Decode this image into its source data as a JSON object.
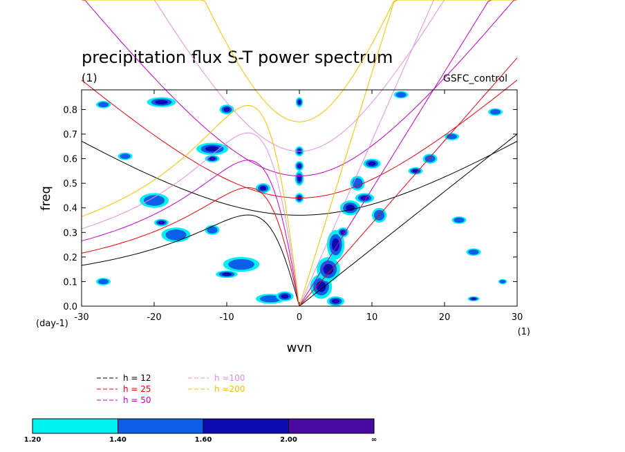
{
  "chart_data": {
    "type": "heatmap",
    "title": "precipitation flux S-T power spectrum",
    "subtitle": "(1)",
    "model_label": "GSFC_control",
    "xlabel": "wvn",
    "ylabel": "freq",
    "x_unit_label": "(1)",
    "y_unit_label": "(day-1)",
    "xlim": [
      -30,
      30
    ],
    "ylim": [
      0,
      0.88
    ],
    "x_ticks": [
      -30,
      -20,
      -10,
      0,
      10,
      20,
      30
    ],
    "x_tick_labels": [
      "-30",
      "-20",
      "-10",
      "0",
      "10",
      "20",
      "30"
    ],
    "y_ticks": [
      0,
      0.1,
      0.2,
      0.3,
      0.4,
      0.5,
      0.6,
      0.7,
      0.8
    ],
    "y_tick_labels": [
      "0.0",
      "0.1",
      "0.2",
      "0.3",
      "0.4",
      "0.5",
      "0.6",
      "0.7",
      "0.8"
    ],
    "colorbar": {
      "levels_labels": [
        "1.20",
        "1.40",
        "1.60",
        "2.00",
        "∞"
      ],
      "colors": [
        "#00f0f0",
        "#0a5fe6",
        "#0b0bb0",
        "#4a0aa0"
      ]
    },
    "dispersion_curves": [
      {
        "label": "h = 12",
        "h": 12,
        "color": "#000000"
      },
      {
        "label": "h = 25",
        "h": 25,
        "color": "#e8000b"
      },
      {
        "label": "h = 50",
        "h": 50,
        "color": "#c000c0"
      },
      {
        "label": "h =100",
        "h": 100,
        "color": "#e090e0"
      },
      {
        "label": "h =200",
        "h": 200,
        "color": "#f0c000"
      }
    ],
    "ridge_tops": [
      {
        "h": 12,
        "freq_at_k0": 0.37
      },
      {
        "h": 25,
        "freq_at_k0": 0.44
      },
      {
        "h": 50,
        "freq_at_k0": 0.53
      },
      {
        "h": 100,
        "freq_at_k0": 0.63
      },
      {
        "h": 200,
        "freq_at_k0": 0.75
      }
    ],
    "kelvin_slopes": [
      {
        "h": 12,
        "freq_at_k30": 0.7
      },
      {
        "h": 25,
        "freq_at_k30": 1.01
      },
      {
        "h": 50,
        "freq_at_k30": 1.43
      },
      {
        "h": 100,
        "freq_at_k30": 2.02
      },
      {
        "h": 200,
        "freq_at_k30": 2.85
      }
    ],
    "blobs": [
      {
        "x": 5,
        "y": 0.02,
        "rx": 1.2,
        "ry": 0.02,
        "level": 3
      },
      {
        "x": 3,
        "y": 0.08,
        "rx": 1.5,
        "ry": 0.05,
        "level": 2
      },
      {
        "x": 4,
        "y": 0.15,
        "rx": 1.6,
        "ry": 0.05,
        "level": 2
      },
      {
        "x": 5,
        "y": 0.25,
        "rx": 1.2,
        "ry": 0.06,
        "level": 2
      },
      {
        "x": 6,
        "y": 0.3,
        "rx": 0.8,
        "ry": 0.02,
        "level": 3
      },
      {
        "x": 7,
        "y": 0.4,
        "rx": 1.4,
        "ry": 0.03,
        "level": 2
      },
      {
        "x": 9,
        "y": 0.44,
        "rx": 1.3,
        "ry": 0.02,
        "level": 3
      },
      {
        "x": 8,
        "y": 0.5,
        "rx": 1.0,
        "ry": 0.03,
        "level": 1
      },
      {
        "x": 10,
        "y": 0.58,
        "rx": 1.2,
        "ry": 0.02,
        "level": 2
      },
      {
        "x": 11,
        "y": 0.37,
        "rx": 1.0,
        "ry": 0.03,
        "level": 1
      },
      {
        "x": 0,
        "y": 0.83,
        "rx": 0.5,
        "ry": 0.02,
        "level": 2
      },
      {
        "x": 0,
        "y": 0.63,
        "rx": 0.6,
        "ry": 0.02,
        "level": 2
      },
      {
        "x": 0,
        "y": 0.52,
        "rx": 0.6,
        "ry": 0.03,
        "level": 2
      },
      {
        "x": 0,
        "y": 0.44,
        "rx": 0.6,
        "ry": 0.02,
        "level": 2
      },
      {
        "x": 0,
        "y": 0.57,
        "rx": 0.6,
        "ry": 0.02,
        "level": 3
      },
      {
        "x": -12,
        "y": 0.64,
        "rx": 2.2,
        "ry": 0.025,
        "level": 2
      },
      {
        "x": -12,
        "y": 0.6,
        "rx": 1.0,
        "ry": 0.015,
        "level": 3
      },
      {
        "x": -19,
        "y": 0.83,
        "rx": 2.0,
        "ry": 0.02,
        "level": 2
      },
      {
        "x": -10,
        "y": 0.8,
        "rx": 1.0,
        "ry": 0.02,
        "level": 2
      },
      {
        "x": -5,
        "y": 0.48,
        "rx": 1.0,
        "ry": 0.02,
        "level": 2
      },
      {
        "x": -20,
        "y": 0.43,
        "rx": 2.0,
        "ry": 0.03,
        "level": 1
      },
      {
        "x": -19,
        "y": 0.34,
        "rx": 1.0,
        "ry": 0.015,
        "level": 3
      },
      {
        "x": -17,
        "y": 0.29,
        "rx": 2.0,
        "ry": 0.03,
        "level": 1
      },
      {
        "x": -12,
        "y": 0.31,
        "rx": 1.0,
        "ry": 0.02,
        "level": 1
      },
      {
        "x": -8,
        "y": 0.17,
        "rx": 2.5,
        "ry": 0.03,
        "level": 1
      },
      {
        "x": -10,
        "y": 0.13,
        "rx": 1.5,
        "ry": 0.015,
        "level": 2
      },
      {
        "x": -4,
        "y": 0.03,
        "rx": 2.0,
        "ry": 0.02,
        "level": 1
      },
      {
        "x": -2,
        "y": 0.04,
        "rx": 1.2,
        "ry": 0.02,
        "level": 2
      },
      {
        "x": 14,
        "y": 0.86,
        "rx": 1.0,
        "ry": 0.015,
        "level": 1
      },
      {
        "x": 16,
        "y": 0.55,
        "rx": 1.0,
        "ry": 0.015,
        "level": 2
      },
      {
        "x": 18,
        "y": 0.6,
        "rx": 1.0,
        "ry": 0.02,
        "level": 1
      },
      {
        "x": 21,
        "y": 0.69,
        "rx": 1.0,
        "ry": 0.015,
        "level": 1
      },
      {
        "x": 24,
        "y": 0.22,
        "rx": 1.0,
        "ry": 0.015,
        "level": 1
      },
      {
        "x": 27,
        "y": 0.79,
        "rx": 1.0,
        "ry": 0.015,
        "level": 1
      },
      {
        "x": 22,
        "y": 0.35,
        "rx": 1.0,
        "ry": 0.015,
        "level": 1
      },
      {
        "x": -27,
        "y": 0.82,
        "rx": 1.0,
        "ry": 0.015,
        "level": 1
      },
      {
        "x": -24,
        "y": 0.61,
        "rx": 1.0,
        "ry": 0.015,
        "level": 1
      },
      {
        "x": -27,
        "y": 0.1,
        "rx": 1.0,
        "ry": 0.015,
        "level": 1
      },
      {
        "x": 24,
        "y": 0.03,
        "rx": 0.8,
        "ry": 0.01,
        "level": 2
      },
      {
        "x": 28,
        "y": 0.1,
        "rx": 0.6,
        "ry": 0.01,
        "level": 1
      }
    ]
  }
}
